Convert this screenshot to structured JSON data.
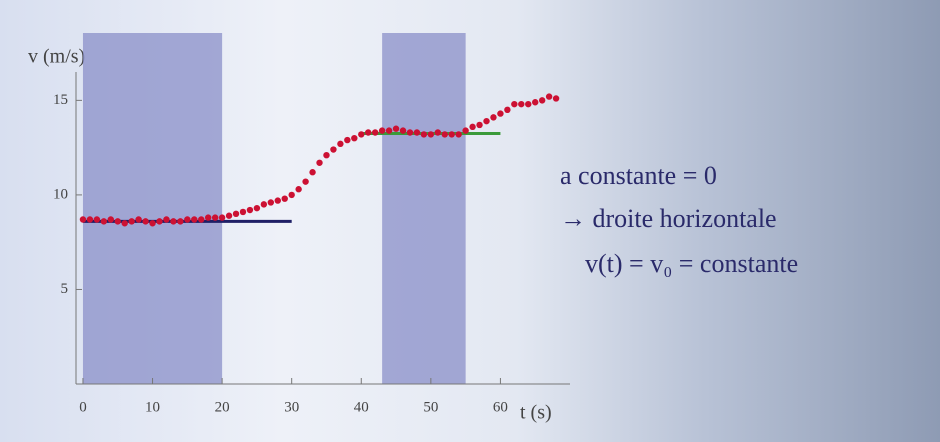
{
  "chart_data": {
    "type": "scatter",
    "y_label": "v (m/s)",
    "x_label": "t (s)",
    "xlim": [
      -1,
      70
    ],
    "ylim": [
      0,
      16.5
    ],
    "xticks": [
      0,
      10,
      20,
      30,
      40,
      50,
      60
    ],
    "yticks": [
      5,
      10,
      15
    ],
    "bands": [
      {
        "x": [
          0,
          20
        ],
        "color": "#8a8fc8"
      },
      {
        "x": [
          43,
          55
        ],
        "color": "#8a8fc8"
      }
    ],
    "series": [
      {
        "color": "#cc1133",
        "x": [
          0,
          1,
          2,
          3,
          4,
          5,
          6,
          7,
          8,
          9,
          10,
          11,
          12,
          13,
          14,
          15,
          16,
          17,
          18,
          19,
          20,
          21,
          22,
          23,
          24,
          25,
          26,
          27,
          28,
          29,
          30,
          31,
          32,
          33,
          34,
          35,
          36,
          37,
          38,
          39,
          40,
          41,
          42,
          43,
          44,
          45,
          46,
          47,
          48,
          49,
          50,
          51,
          52,
          53,
          54,
          55,
          56,
          57,
          58,
          59,
          60,
          61,
          62,
          63,
          64,
          65,
          66,
          67,
          68
        ],
        "values": [
          8.7,
          8.7,
          8.7,
          8.6,
          8.7,
          8.6,
          8.5,
          8.6,
          8.7,
          8.6,
          8.5,
          8.6,
          8.7,
          8.6,
          8.6,
          8.7,
          8.7,
          8.7,
          8.8,
          8.8,
          8.8,
          8.9,
          9.0,
          9.1,
          9.2,
          9.3,
          9.5,
          9.6,
          9.7,
          9.8,
          10.0,
          10.3,
          10.7,
          11.2,
          11.7,
          12.1,
          12.4,
          12.7,
          12.9,
          13.0,
          13.2,
          13.3,
          13.3,
          13.4,
          13.4,
          13.5,
          13.4,
          13.3,
          13.3,
          13.2,
          13.2,
          13.3,
          13.2,
          13.2,
          13.2,
          13.4,
          13.6,
          13.7,
          13.9,
          14.1,
          14.3,
          14.5,
          14.8,
          14.8,
          14.8,
          14.9,
          15.0,
          15.2,
          15.1
        ]
      }
    ],
    "lines": [
      {
        "x": [
          0,
          30
        ],
        "values": [
          8.6,
          8.6
        ],
        "color": "#1f1f66"
      },
      {
        "x": [
          40,
          60
        ],
        "values": [
          13.25,
          13.25
        ],
        "color": "#3a9a3a"
      }
    ],
    "annotations": [
      "a constante = 0",
      "→ droite horizontale",
      "v(t) = v₀ = constante"
    ]
  }
}
